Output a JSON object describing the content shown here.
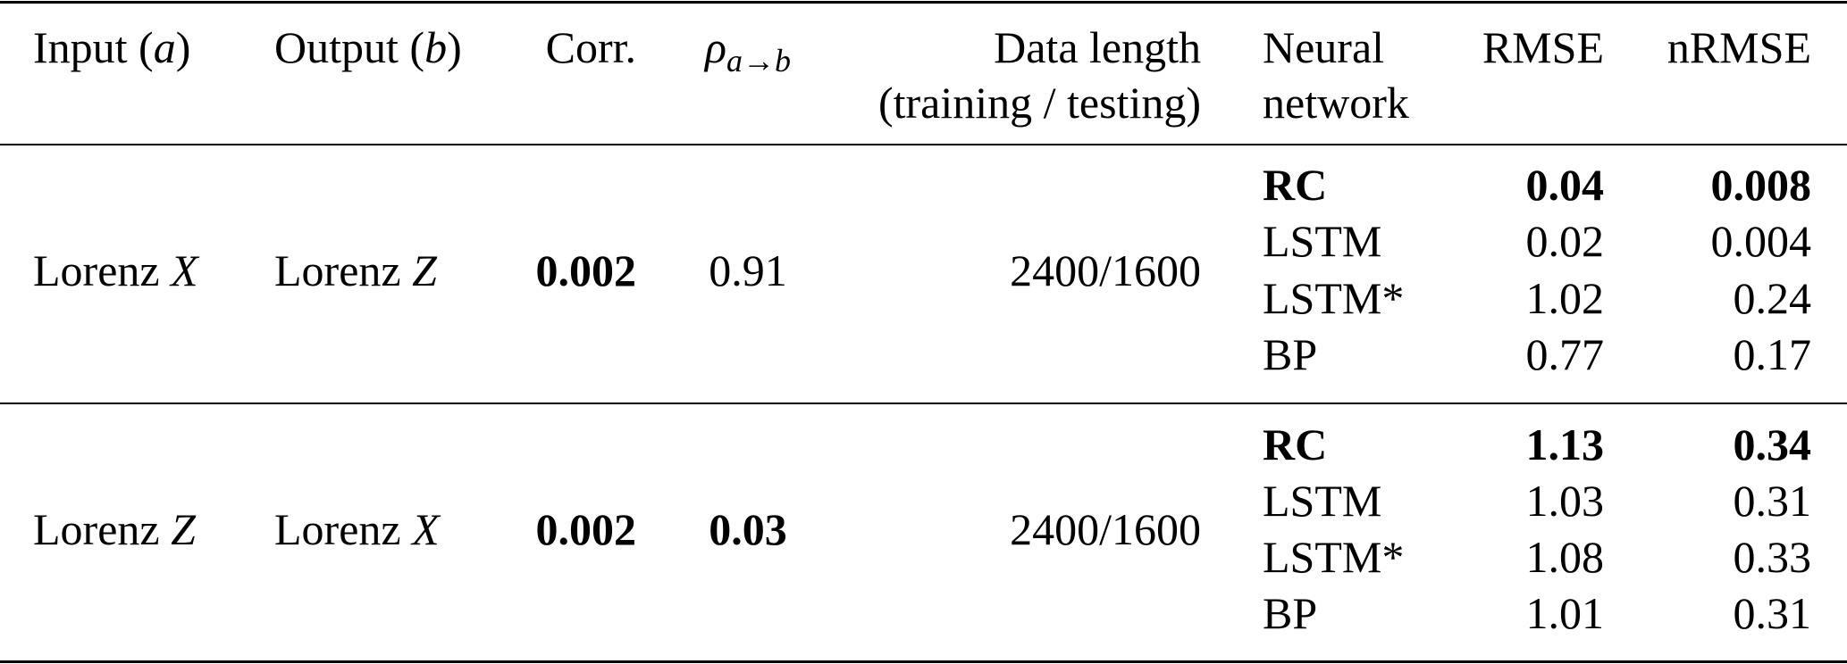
{
  "table": {
    "headers": {
      "input": "Input",
      "input_var": "a",
      "output": "Output",
      "output_var": "b",
      "corr": "Corr.",
      "rho": "ρ",
      "rho_sub": "a→b",
      "data_length_line1": "Data length",
      "data_length_line2": "(training / testing)",
      "network_line1": "Neural",
      "network_line2": "network",
      "rmse": "RMSE",
      "nrmse": "nRMSE"
    },
    "groups": [
      {
        "input": "Lorenz ",
        "input_var": "X",
        "output": "Lorenz ",
        "output_var": "Z",
        "corr": "0.002",
        "corr_bold": true,
        "rho": "0.91",
        "rho_bold": false,
        "data_length": "2400/1600",
        "rows": [
          {
            "network": "RC",
            "rmse": "0.04",
            "nrmse": "0.008",
            "bold": true
          },
          {
            "network": "LSTM",
            "rmse": "0.02",
            "nrmse": "0.004",
            "bold": false
          },
          {
            "network": "LSTM*",
            "rmse": "1.02",
            "nrmse": "0.24",
            "bold": false
          },
          {
            "network": "BP",
            "rmse": "0.77",
            "nrmse": "0.17",
            "bold": false
          }
        ]
      },
      {
        "input": "Lorenz ",
        "input_var": "Z",
        "output": "Lorenz ",
        "output_var": "X",
        "corr": "0.002",
        "corr_bold": true,
        "rho": "0.03",
        "rho_bold": true,
        "data_length": "2400/1600",
        "rows": [
          {
            "network": "RC",
            "rmse": "1.13",
            "nrmse": "0.34",
            "bold": true
          },
          {
            "network": "LSTM",
            "rmse": "1.03",
            "nrmse": "0.31",
            "bold": false
          },
          {
            "network": "LSTM*",
            "rmse": "1.08",
            "nrmse": "0.33",
            "bold": false
          },
          {
            "network": "BP",
            "rmse": "1.01",
            "nrmse": "0.31",
            "bold": false
          }
        ]
      }
    ]
  }
}
